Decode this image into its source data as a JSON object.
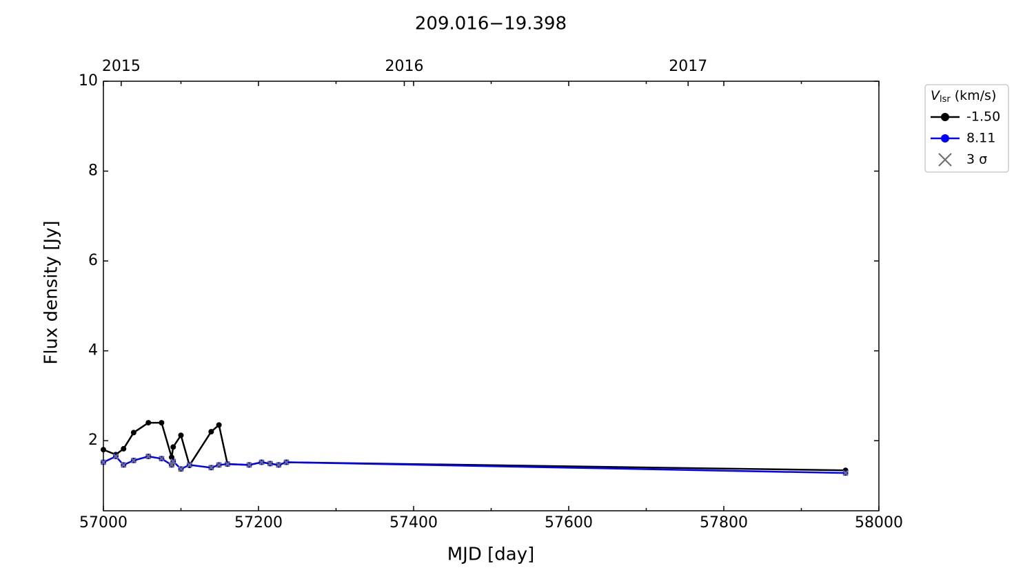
{
  "chart_data": {
    "type": "line",
    "title": "209.016−19.398",
    "xlabel": "MJD [day]",
    "ylabel": "Flux density [Jy]",
    "xlim": [
      57000,
      58000
    ],
    "xticks": [
      57000,
      57200,
      57400,
      57600,
      57800,
      58000
    ],
    "xminorticks": [
      57100,
      57300,
      57500,
      57700,
      57900
    ],
    "ylim": [
      0.44,
      10
    ],
    "yticks": [
      2,
      4,
      6,
      8,
      10
    ],
    "x2ticks": [
      {
        "value": 57023,
        "label": "2015"
      },
      {
        "value": 57388,
        "label": "2016"
      },
      {
        "value": 57754,
        "label": "2017"
      }
    ],
    "legend_title": {
      "symbol": "V",
      "subscript": "lsr",
      "unit": "(km/s)"
    },
    "legend": "outside-upper-right",
    "series": [
      {
        "name": "-1.50",
        "color": "#000000",
        "marker": "circle",
        "x": [
          57000,
          57016,
          57026,
          57039,
          57058,
          57075,
          57088,
          57090,
          57100,
          57111,
          57139,
          57149,
          57160,
          57188,
          57204,
          57215,
          57226,
          57236,
          57957
        ],
        "values": [
          1.8,
          1.69,
          1.82,
          2.18,
          2.4,
          2.4,
          1.63,
          1.86,
          2.12,
          1.45,
          2.2,
          2.35,
          1.48,
          1.46,
          1.52,
          1.49,
          1.46,
          1.52,
          1.34
        ]
      },
      {
        "name": "8.11",
        "color": "#0000ff",
        "marker": "circle",
        "x": [
          57000,
          57016,
          57026,
          57039,
          57058,
          57075,
          57088,
          57090,
          57100,
          57111,
          57139,
          57149,
          57160,
          57188,
          57204,
          57215,
          57226,
          57236,
          57957
        ],
        "values": [
          1.52,
          1.65,
          1.46,
          1.56,
          1.65,
          1.6,
          1.46,
          1.54,
          1.37,
          1.46,
          1.4,
          1.46,
          1.48,
          1.46,
          1.52,
          1.49,
          1.46,
          1.52,
          1.28
        ]
      },
      {
        "name": "3 σ",
        "color": "#707070",
        "marker": "cross",
        "x": [
          57000,
          57016,
          57026,
          57039,
          57058,
          57075,
          57088,
          57090,
          57100,
          57111,
          57139,
          57149,
          57160,
          57188,
          57204,
          57215,
          57226,
          57236,
          57957
        ],
        "values": [
          1.52,
          1.65,
          1.46,
          1.56,
          1.65,
          1.6,
          1.46,
          1.54,
          1.37,
          1.46,
          1.4,
          1.46,
          1.48,
          1.46,
          1.52,
          1.49,
          1.46,
          1.52,
          1.28
        ]
      }
    ]
  }
}
